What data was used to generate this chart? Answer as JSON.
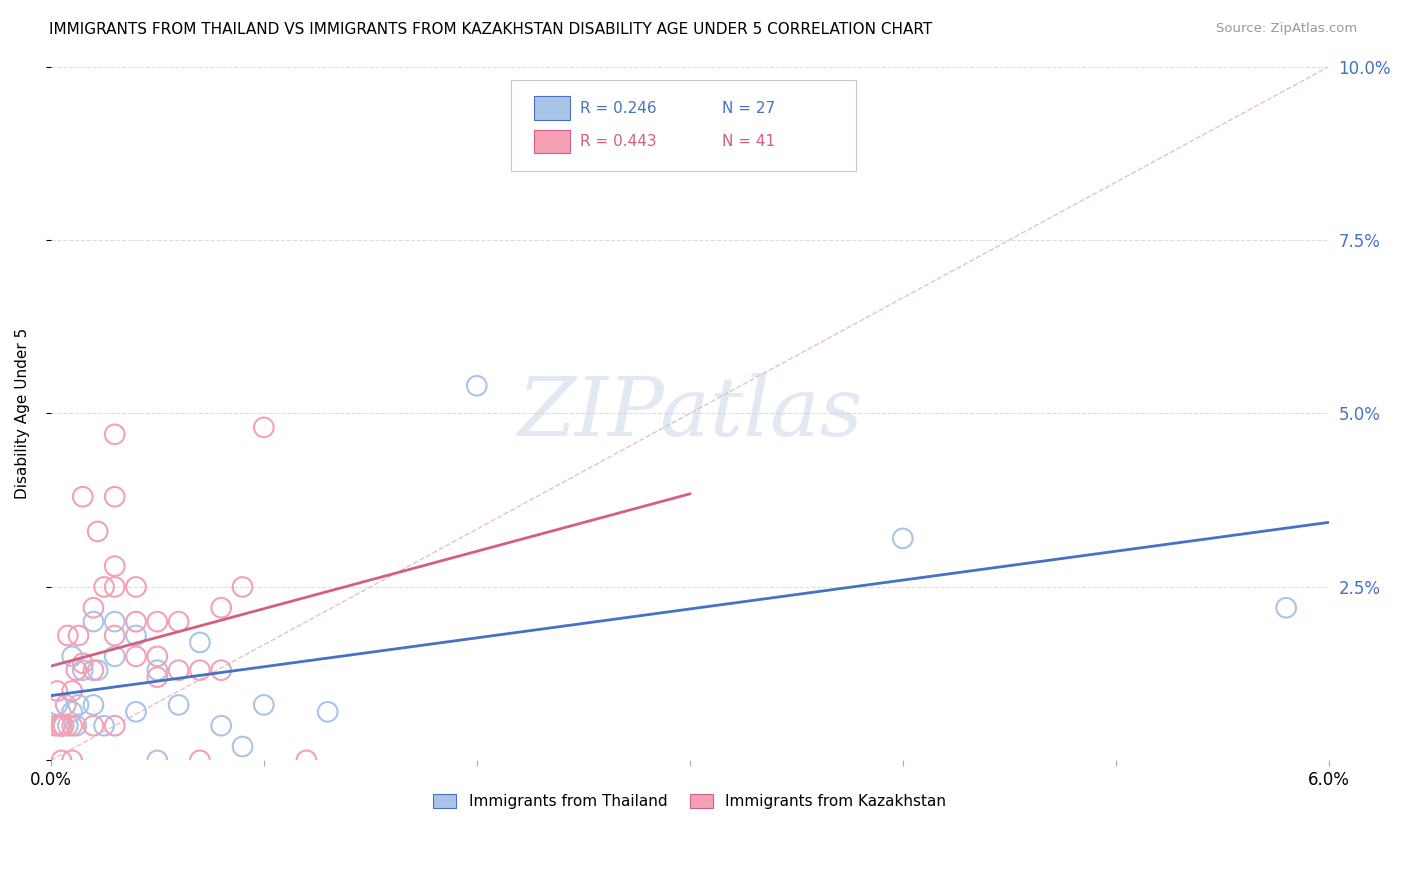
{
  "title": "IMMIGRANTS FROM THAILAND VS IMMIGRANTS FROM KAZAKHSTAN DISABILITY AGE UNDER 5 CORRELATION CHART",
  "source": "Source: ZipAtlas.com",
  "ylabel": "Disability Age Under 5",
  "xlim": [
    0.0,
    0.06
  ],
  "ylim": [
    0.0,
    0.1
  ],
  "x_ticks": [
    0.0,
    0.01,
    0.02,
    0.03,
    0.04,
    0.05,
    0.06
  ],
  "y_ticks_right": [
    0.0,
    0.025,
    0.05,
    0.075,
    0.1
  ],
  "y_tick_labels_right": [
    "",
    "2.5%",
    "5.0%",
    "7.5%",
    "10.0%"
  ],
  "legend_r1": "R = 0.246",
  "legend_n1": "N = 27",
  "legend_r2": "R = 0.443",
  "legend_n2": "N = 41",
  "color_thailand": "#aac4e8",
  "color_kazakhstan": "#f5a0b5",
  "color_line_thailand": "#4472c4",
  "color_line_kazakhstan": "#d45f80",
  "thailand_x": [
    0.0003,
    0.0005,
    0.0008,
    0.001,
    0.001,
    0.0012,
    0.0013,
    0.0015,
    0.002,
    0.002,
    0.0022,
    0.0025,
    0.003,
    0.003,
    0.004,
    0.004,
    0.005,
    0.005,
    0.006,
    0.007,
    0.008,
    0.009,
    0.01,
    0.013,
    0.02,
    0.04,
    0.058
  ],
  "thailand_y": [
    0.008,
    0.005,
    0.005,
    0.007,
    0.015,
    0.005,
    0.008,
    0.013,
    0.008,
    0.02,
    0.013,
    0.005,
    0.015,
    0.02,
    0.007,
    0.018,
    0.0,
    0.013,
    0.008,
    0.017,
    0.005,
    0.002,
    0.008,
    0.007,
    0.054,
    0.032,
    0.022
  ],
  "kazakhstan_x": [
    0.0002,
    0.0003,
    0.0004,
    0.0005,
    0.0005,
    0.0006,
    0.0007,
    0.0008,
    0.001,
    0.001,
    0.001,
    0.0012,
    0.0013,
    0.0015,
    0.0015,
    0.002,
    0.002,
    0.002,
    0.0022,
    0.0025,
    0.003,
    0.003,
    0.003,
    0.003,
    0.003,
    0.004,
    0.004,
    0.004,
    0.005,
    0.005,
    0.005,
    0.006,
    0.006,
    0.007,
    0.007,
    0.008,
    0.008,
    0.009,
    0.01,
    0.012,
    0.003
  ],
  "kazakhstan_y": [
    0.005,
    0.01,
    0.005,
    0.0,
    0.005,
    0.005,
    0.008,
    0.018,
    0.0,
    0.005,
    0.01,
    0.013,
    0.018,
    0.014,
    0.038,
    0.005,
    0.013,
    0.022,
    0.033,
    0.025,
    0.005,
    0.018,
    0.025,
    0.028,
    0.038,
    0.015,
    0.02,
    0.025,
    0.012,
    0.015,
    0.02,
    0.013,
    0.02,
    0.0,
    0.013,
    0.013,
    0.022,
    0.025,
    0.048,
    0.0,
    0.047
  ],
  "watermark": "ZIPatlas",
  "background_color": "#ffffff",
  "grid_color": "#e8e8e8",
  "grid_color_dashed": "#dddddd"
}
